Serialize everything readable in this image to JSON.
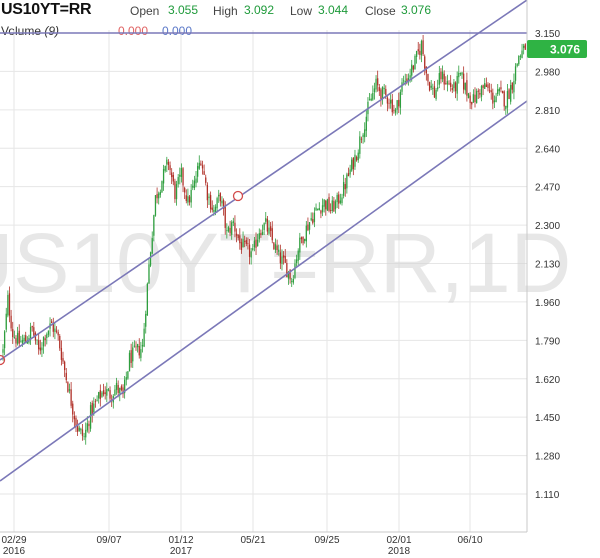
{
  "header": {
    "symbol": "US10YT=RR",
    "open_label": "Open",
    "open_value": "3.055",
    "high_label": "High",
    "high_value": "3.092",
    "low_label": "Low",
    "low_value": "3.044",
    "close_label": "Close",
    "close_value": "3.076",
    "volume_label": "Volume",
    "volume_period": "(9)",
    "volume_value_1": "0.000",
    "volume_value_2": "0.000"
  },
  "colors": {
    "up": "#2e9e3e",
    "down": "#b03028",
    "channel": "#7b78b8",
    "grid": "#e6e6e6",
    "label_box": "#2fb344",
    "value_up": "#1e9a3a"
  },
  "watermark": "US10YT=RR,1D",
  "chart_data": {
    "type": "candlestick",
    "title": "US10YT=RR",
    "x_ticks": [
      {
        "label": "02/29",
        "sub": "2016"
      },
      {
        "label": "09/07",
        "sub": ""
      },
      {
        "label": "01/12",
        "sub": "2017"
      },
      {
        "label": "05/21",
        "sub": ""
      },
      {
        "label": "09/25",
        "sub": ""
      },
      {
        "label": "02/01",
        "sub": "2018"
      },
      {
        "label": "06/10",
        "sub": ""
      }
    ],
    "y_ticks": [
      "3.150",
      "2.980",
      "2.810",
      "2.640",
      "2.470",
      "2.300",
      "2.130",
      "1.960",
      "1.790",
      "1.620",
      "1.450",
      "1.280",
      "1.110"
    ],
    "ylim": [
      1.03,
      3.21
    ],
    "last_price": "3.076",
    "horizontal_line": 3.15,
    "grid": true,
    "anchors": [
      [
        0,
        1.74
      ],
      [
        3,
        1.97
      ],
      [
        6,
        1.82
      ],
      [
        10,
        1.78
      ],
      [
        14,
        1.79
      ],
      [
        18,
        1.84
      ],
      [
        22,
        1.74
      ],
      [
        26,
        1.82
      ],
      [
        30,
        1.86
      ],
      [
        34,
        1.8
      ],
      [
        38,
        1.66
      ],
      [
        42,
        1.52
      ],
      [
        46,
        1.4
      ],
      [
        50,
        1.36
      ],
      [
        54,
        1.47
      ],
      [
        58,
        1.52
      ],
      [
        62,
        1.57
      ],
      [
        66,
        1.55
      ],
      [
        70,
        1.58
      ],
      [
        74,
        1.54
      ],
      [
        78,
        1.71
      ],
      [
        82,
        1.74
      ],
      [
        86,
        1.76
      ],
      [
        90,
        2.12
      ],
      [
        94,
        2.42
      ],
      [
        98,
        2.5
      ],
      [
        102,
        2.58
      ],
      [
        106,
        2.44
      ],
      [
        110,
        2.52
      ],
      [
        114,
        2.4
      ],
      [
        118,
        2.48
      ],
      [
        122,
        2.6
      ],
      [
        126,
        2.44
      ],
      [
        130,
        2.36
      ],
      [
        134,
        2.43
      ],
      [
        138,
        2.26
      ],
      [
        142,
        2.31
      ],
      [
        146,
        2.22
      ],
      [
        150,
        2.19
      ],
      [
        154,
        2.17
      ],
      [
        158,
        2.28
      ],
      [
        162,
        2.3
      ],
      [
        166,
        2.23
      ],
      [
        170,
        2.16
      ],
      [
        174,
        2.12
      ],
      [
        178,
        2.06
      ],
      [
        182,
        2.2
      ],
      [
        186,
        2.27
      ],
      [
        190,
        2.33
      ],
      [
        194,
        2.37
      ],
      [
        198,
        2.4
      ],
      [
        202,
        2.37
      ],
      [
        206,
        2.4
      ],
      [
        210,
        2.46
      ],
      [
        214,
        2.54
      ],
      [
        218,
        2.62
      ],
      [
        222,
        2.73
      ],
      [
        226,
        2.84
      ],
      [
        230,
        2.92
      ],
      [
        234,
        2.88
      ],
      [
        238,
        2.86
      ],
      [
        242,
        2.8
      ],
      [
        246,
        2.92
      ],
      [
        250,
        2.96
      ],
      [
        254,
        3.02
      ],
      [
        258,
        3.1
      ],
      [
        262,
        2.94
      ],
      [
        266,
        2.88
      ],
      [
        270,
        2.96
      ],
      [
        274,
        2.93
      ],
      [
        278,
        2.9
      ],
      [
        282,
        2.96
      ],
      [
        286,
        2.89
      ],
      [
        290,
        2.85
      ],
      [
        294,
        2.9
      ],
      [
        298,
        2.91
      ],
      [
        302,
        2.86
      ],
      [
        306,
        2.88
      ],
      [
        310,
        2.85
      ],
      [
        314,
        2.93
      ],
      [
        318,
        3.05
      ],
      [
        322,
        3.076
      ]
    ]
  }
}
